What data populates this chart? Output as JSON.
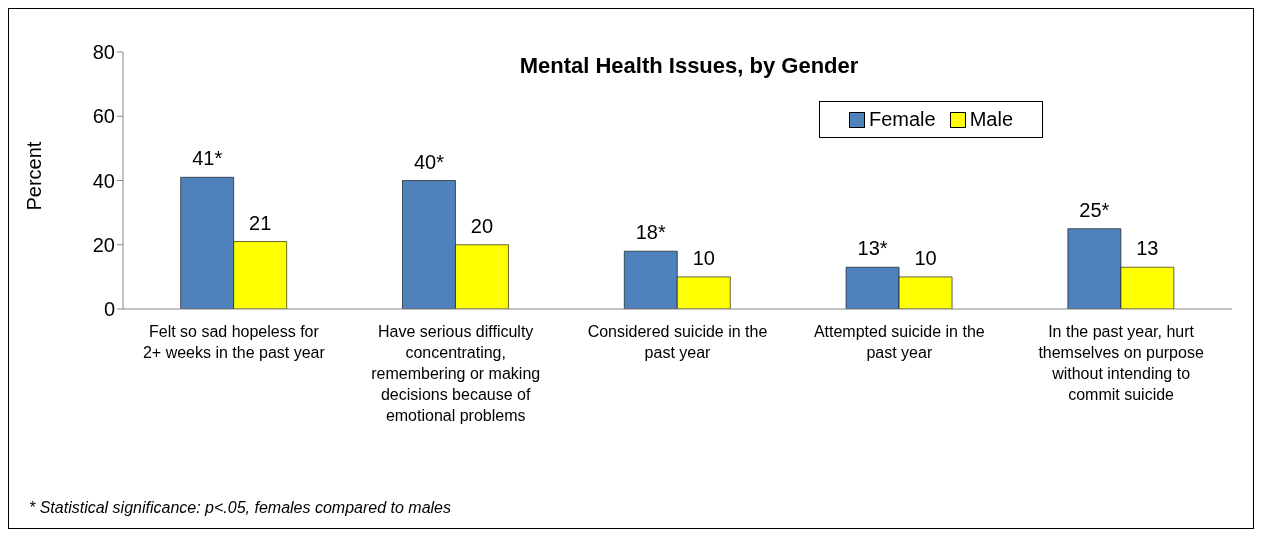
{
  "chart_data": {
    "type": "bar",
    "title": "Mental Health Issues, by Gender",
    "ylabel": "Percent",
    "categories": [
      "Felt so sad hopeless for 2+ weeks in the past year",
      "Have serious difficulty concentrating, remembering or making decisions because of emotional problems",
      "Considered suicide in the past year",
      "Attempted suicide in the past year",
      "In the past year, hurt themselves on purpose without intending to commit suicide"
    ],
    "series": [
      {
        "name": "Female",
        "color": "#4f81bd",
        "values": [
          41,
          40,
          18,
          13,
          25
        ],
        "value_labels": [
          "41*",
          "40*",
          "18*",
          "13*",
          "25*"
        ]
      },
      {
        "name": "Male",
        "color": "#ffff00",
        "values": [
          21,
          20,
          10,
          10,
          13
        ],
        "value_labels": [
          "21",
          "20",
          "10",
          "10",
          "13"
        ]
      }
    ],
    "ylim": [
      0,
      80
    ],
    "yticks": [
      0,
      20,
      40,
      60,
      80
    ],
    "grid": false,
    "legend": "top right",
    "annotations": [
      "* Statistical significance: p<.05, females compared to males"
    ]
  }
}
